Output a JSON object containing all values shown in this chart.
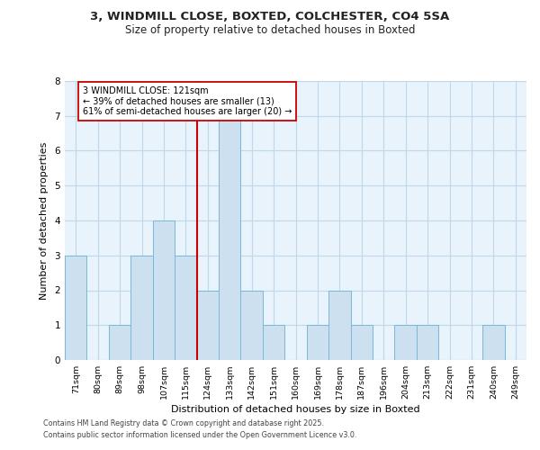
{
  "title_line1": "3, WINDMILL CLOSE, BOXTED, COLCHESTER, CO4 5SA",
  "title_line2": "Size of property relative to detached houses in Boxted",
  "xlabel": "Distribution of detached houses by size in Boxted",
  "ylabel": "Number of detached properties",
  "bar_labels": [
    "71sqm",
    "80sqm",
    "89sqm",
    "98sqm",
    "107sqm",
    "115sqm",
    "124sqm",
    "133sqm",
    "142sqm",
    "151sqm",
    "160sqm",
    "169sqm",
    "178sqm",
    "187sqm",
    "196sqm",
    "204sqm",
    "213sqm",
    "222sqm",
    "231sqm",
    "240sqm",
    "249sqm"
  ],
  "bar_values": [
    3,
    0,
    1,
    3,
    4,
    3,
    2,
    7,
    2,
    1,
    0,
    1,
    2,
    1,
    0,
    1,
    1,
    0,
    0,
    1,
    0
  ],
  "bar_color": "#cce0f0",
  "bar_edge_color": "#7ab8d9",
  "grid_color": "#c0d8ea",
  "background_color": "#e8f3fb",
  "property_line_x": 5.5,
  "property_line_color": "#cc0000",
  "annotation_text": "3 WINDMILL CLOSE: 121sqm\n← 39% of detached houses are smaller (13)\n61% of semi-detached houses are larger (20) →",
  "annotation_box_color": "#ffffff",
  "annotation_box_edge": "#cc0000",
  "ylim": [
    0,
    8
  ],
  "yticks": [
    0,
    1,
    2,
    3,
    4,
    5,
    6,
    7,
    8
  ],
  "footer_line1": "Contains HM Land Registry data © Crown copyright and database right 2025.",
  "footer_line2": "Contains public sector information licensed under the Open Government Licence v3.0."
}
